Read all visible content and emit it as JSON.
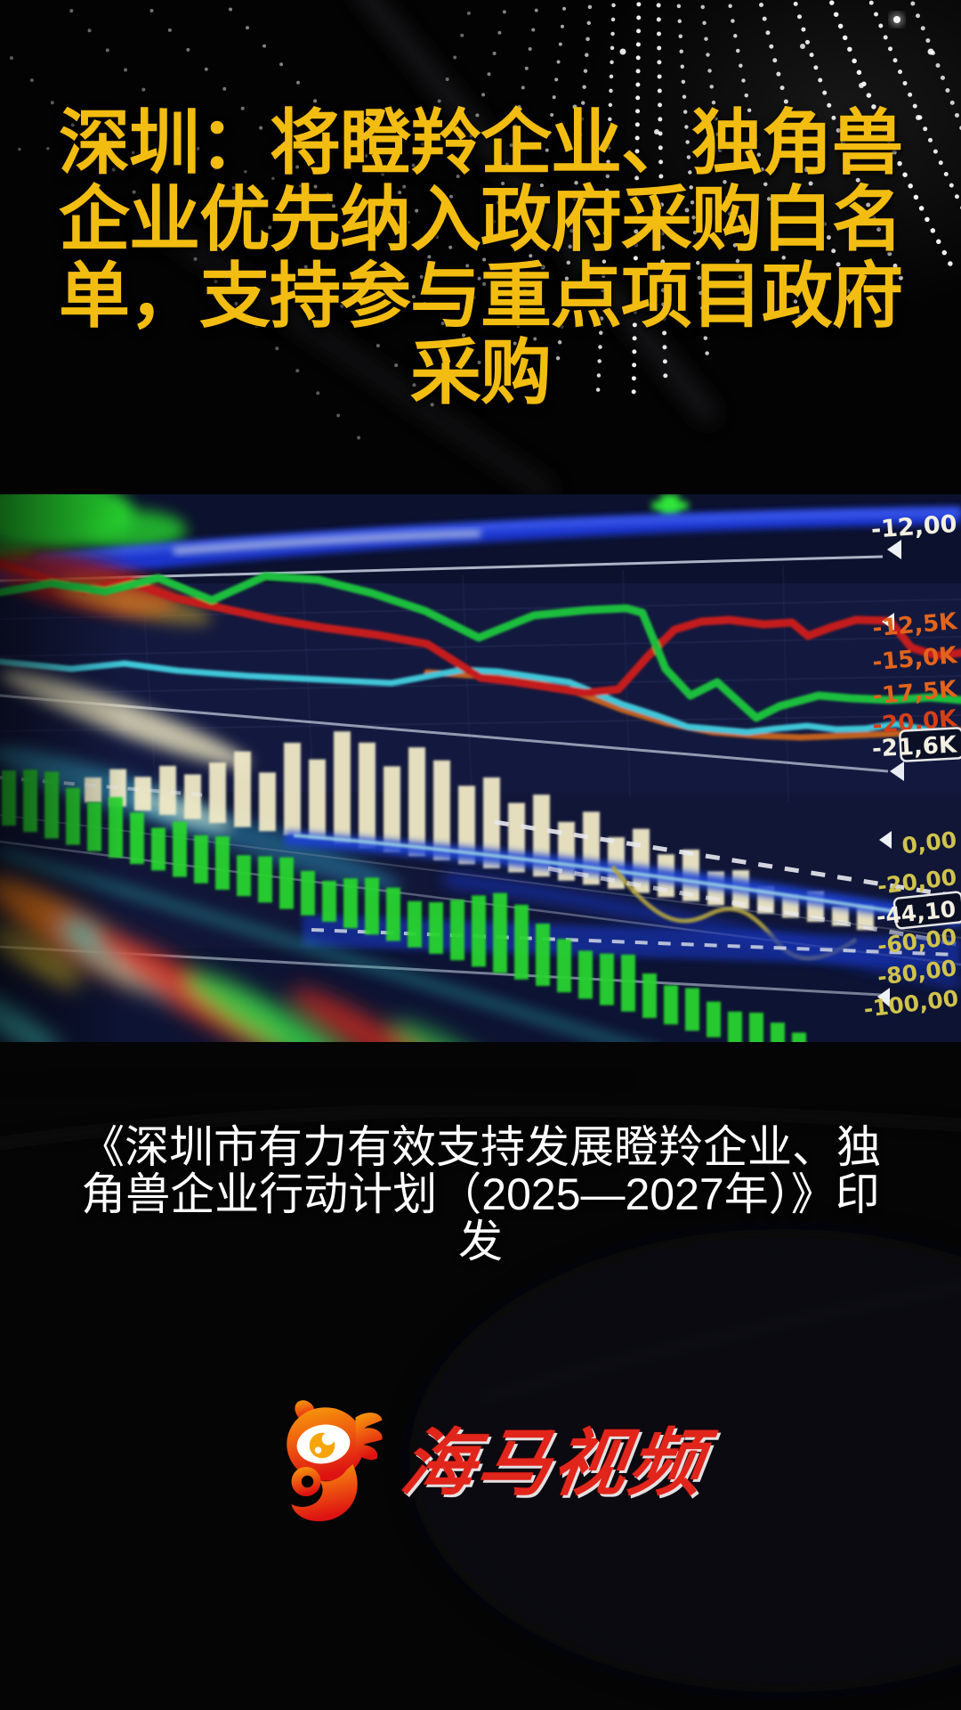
{
  "page": {
    "kind": "short-video-news-cover",
    "language": "zh-CN"
  },
  "headline": {
    "full_text": "深圳：将瞪羚企业、独角兽企业优先纳入政府采购白名单，支持参与重点项目政府采购",
    "lines": [
      "深圳：将瞪羚企业、独角兽",
      "企业优先纳入政府采购白名",
      "单，支持参与重点项目政府",
      "采购"
    ],
    "color": "#f2bd10"
  },
  "caption": {
    "full_text": "《深圳市有力有效支持发展瞪羚企业、独角兽企业行动计划（2025—2027年）》印发",
    "lines": [
      "《深圳市有力有效支持发展瞪羚企业、独",
      "角兽企业行动计划（2025—2027年）》印",
      "发"
    ],
    "color": "#ffffff"
  },
  "brand": {
    "name": "海马视频",
    "icon": "seahorse-eye-logo",
    "text_color": "#e1251b",
    "icon_colors": [
      "#f7a00a",
      "#e8320f"
    ]
  },
  "chart_data": {
    "type": "line",
    "title": "",
    "description": "Out-of-focus photograph of a financial trading screen: multi-panel price lines, volume histograms and indicator bands on a dark navy background, tilted in perspective",
    "grid": true,
    "legend_position": "none",
    "panels": [
      {
        "id": "upper-price-panel",
        "series": [
          {
            "name": "red-line",
            "color": "#c41e1e"
          },
          {
            "name": "green-line",
            "color": "#1dbe3c"
          },
          {
            "name": "cyan-line",
            "color": "#3fc6d8"
          },
          {
            "name": "orange-line",
            "color": "#c9641f"
          }
        ],
        "right_axis_labels": [
          {
            "text": "-12,00",
            "color": "#f3f0e1"
          },
          {
            "text": "-12,5K",
            "color": "#e2641c"
          },
          {
            "text": "-15,0K",
            "color": "#e2641c"
          },
          {
            "text": "-17,5K",
            "color": "#e2641c"
          },
          {
            "text": "-20,0K",
            "color": "#d63f16"
          }
        ],
        "boxed_value": "-21,6K"
      },
      {
        "id": "lower-indicator-panel",
        "series": [
          {
            "name": "cream-histogram",
            "color": "#efe9c6"
          },
          {
            "name": "green-histogram",
            "color": "#27d42f"
          },
          {
            "name": "blue-band",
            "color": "#1e44d8"
          },
          {
            "name": "khaki-line",
            "color": "#b3a441"
          }
        ],
        "right_axis_labels": [
          {
            "text": "0,00",
            "color": "#cfc34c"
          },
          {
            "text": "-20,00",
            "color": "#cfc34c"
          },
          {
            "text": "-60,00",
            "color": "#cfc34c"
          },
          {
            "text": "-80,00",
            "color": "#cfc34c"
          },
          {
            "text": "-100,00",
            "color": "#cfc34c"
          }
        ],
        "boxed_value": "-44,10"
      }
    ]
  }
}
